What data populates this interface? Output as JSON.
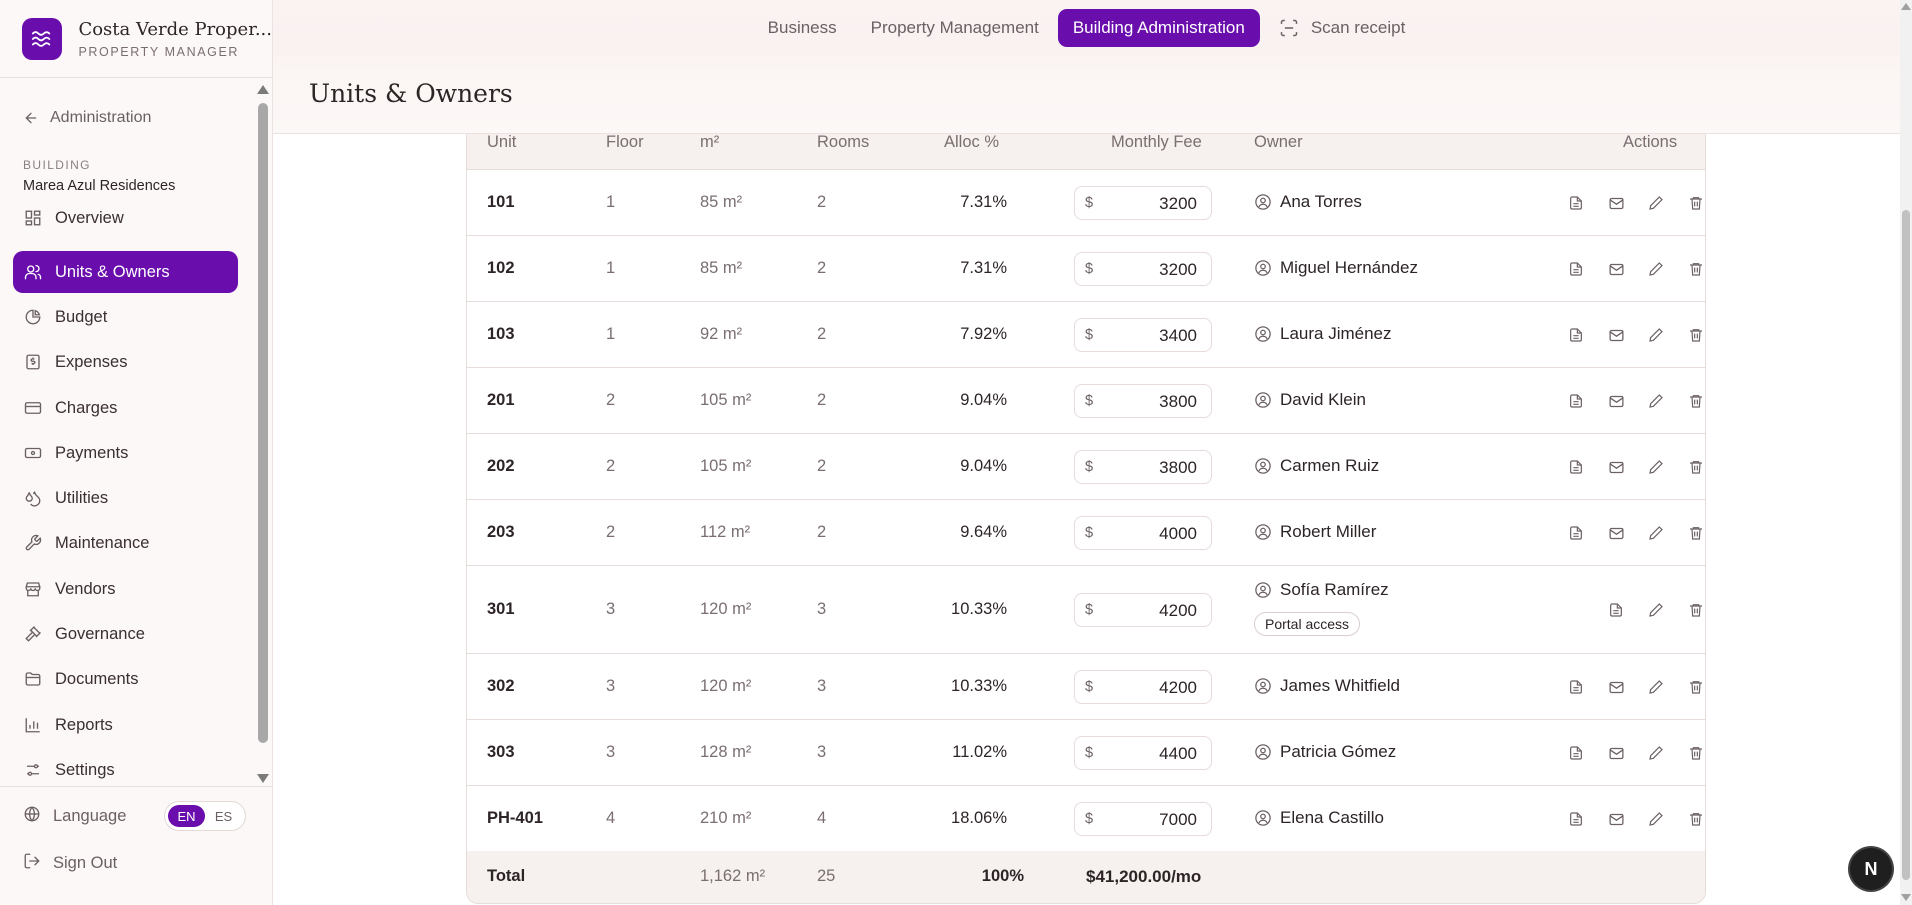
{
  "brand": {
    "name": "Costa Verde Proper...",
    "subtitle": "PROPERTY MANAGER"
  },
  "sidebar": {
    "back_label": "Administration",
    "building_caption": "BUILDING",
    "building_name": "Marea Azul Residences",
    "items": [
      {
        "label": "Overview",
        "icon": "grid-icon"
      },
      {
        "label": "Units & Owners",
        "icon": "users-icon",
        "active": true
      },
      {
        "label": "Budget",
        "icon": "pie-chart-icon"
      },
      {
        "label": "Expenses",
        "icon": "receipt-dollar-icon"
      },
      {
        "label": "Charges",
        "icon": "credit-card-icon"
      },
      {
        "label": "Payments",
        "icon": "banknote-icon"
      },
      {
        "label": "Utilities",
        "icon": "droplets-icon"
      },
      {
        "label": "Maintenance",
        "icon": "wrench-icon"
      },
      {
        "label": "Vendors",
        "icon": "store-icon"
      },
      {
        "label": "Governance",
        "icon": "gavel-icon"
      },
      {
        "label": "Documents",
        "icon": "folder-icon"
      },
      {
        "label": "Reports",
        "icon": "bar-chart-icon"
      },
      {
        "label": "Settings",
        "icon": "sliders-icon"
      }
    ],
    "language_label": "Language",
    "lang_options": [
      "EN",
      "ES"
    ],
    "lang_selected": "EN",
    "signout_label": "Sign Out"
  },
  "topnav": {
    "tabs": [
      {
        "label": "Business"
      },
      {
        "label": "Property Management"
      },
      {
        "label": "Building Administration",
        "active": true
      },
      {
        "label": "Scan receipt",
        "icon": "scan-icon"
      }
    ]
  },
  "page": {
    "title": "Units & Owners"
  },
  "table": {
    "headers": {
      "unit": "Unit",
      "floor": "Floor",
      "area": "m²",
      "rooms": "Rooms",
      "alloc": "Alloc %",
      "fee": "Monthly Fee",
      "owner": "Owner",
      "actions": "Actions"
    },
    "currency_symbol": "$",
    "rows": [
      {
        "unit": "101",
        "floor": "1",
        "area": "85 m²",
        "rooms": "2",
        "alloc": "7.31%",
        "fee": "3200",
        "owner": "Ana Torres"
      },
      {
        "unit": "102",
        "floor": "1",
        "area": "85 m²",
        "rooms": "2",
        "alloc": "7.31%",
        "fee": "3200",
        "owner": "Miguel Hernández"
      },
      {
        "unit": "103",
        "floor": "1",
        "area": "92 m²",
        "rooms": "2",
        "alloc": "7.92%",
        "fee": "3400",
        "owner": "Laura Jiménez"
      },
      {
        "unit": "201",
        "floor": "2",
        "area": "105 m²",
        "rooms": "2",
        "alloc": "9.04%",
        "fee": "3800",
        "owner": "David Klein"
      },
      {
        "unit": "202",
        "floor": "2",
        "area": "105 m²",
        "rooms": "2",
        "alloc": "9.04%",
        "fee": "3800",
        "owner": "Carmen Ruiz"
      },
      {
        "unit": "203",
        "floor": "2",
        "area": "112 m²",
        "rooms": "2",
        "alloc": "9.64%",
        "fee": "4000",
        "owner": "Robert Miller"
      },
      {
        "unit": "301",
        "floor": "3",
        "area": "120 m²",
        "rooms": "3",
        "alloc": "10.33%",
        "fee": "4200",
        "owner": "Sofía Ramírez",
        "badge": "Portal access"
      },
      {
        "unit": "302",
        "floor": "3",
        "area": "120 m²",
        "rooms": "3",
        "alloc": "10.33%",
        "fee": "4200",
        "owner": "James Whitfield"
      },
      {
        "unit": "303",
        "floor": "3",
        "area": "128 m²",
        "rooms": "3",
        "alloc": "11.02%",
        "fee": "4400",
        "owner": "Patricia Gómez"
      },
      {
        "unit": "PH-401",
        "floor": "4",
        "area": "210 m²",
        "rooms": "4",
        "alloc": "18.06%",
        "fee": "7000",
        "owner": "Elena Castillo"
      }
    ],
    "totals": {
      "label": "Total",
      "area": "1,162 m²",
      "rooms": "25",
      "alloc": "100%",
      "fee": "$41,200.00/mo"
    }
  },
  "help_button": {
    "label": "N"
  },
  "colors": {
    "accent": "#6a0dad",
    "success": "#2e9a4f"
  }
}
